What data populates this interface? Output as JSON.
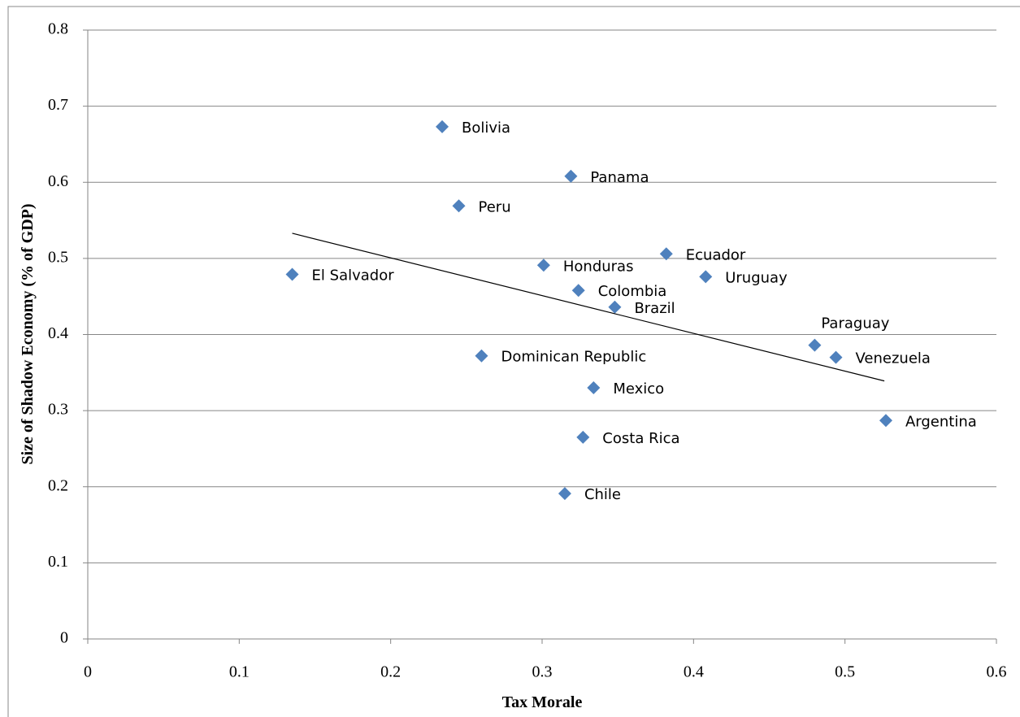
{
  "chart_data": {
    "type": "scatter",
    "x_label": "Tax Morale",
    "y_label": "Size of Shadow Economy (% of GDP)",
    "series": [
      {
        "color": "#4f81bd",
        "labels": [
          "Bolivia",
          "Panama",
          "Peru",
          "El Salvador",
          "Honduras",
          "Ecuador",
          "Uruguay",
          "Colombia",
          "Brazil",
          "Paraguay",
          "Venezuela",
          "Dominican Republic",
          "Mexico",
          "Argentina",
          "Costa Rica",
          "Chile"
        ],
        "x": [
          0.234,
          0.319,
          0.245,
          0.135,
          0.301,
          0.382,
          0.408,
          0.324,
          0.348,
          0.48,
          0.494,
          0.26,
          0.334,
          0.527,
          0.327,
          0.315
        ],
        "y": [
          0.673,
          0.608,
          0.569,
          0.479,
          0.491,
          0.506,
          0.476,
          0.458,
          0.436,
          0.386,
          0.37,
          0.372,
          0.33,
          0.287,
          0.265,
          0.191
        ]
      }
    ],
    "trendline": {
      "color": "#000000",
      "x": [
        0.135,
        0.526
      ],
      "y": [
        0.533,
        0.339
      ]
    },
    "xlim": [
      0,
      0.6
    ],
    "xticks": [
      0,
      0.1,
      0.2,
      0.3,
      0.4,
      0.5,
      0.6
    ],
    "ylim": [
      0,
      0.8
    ],
    "yticks": [
      0,
      0.1,
      0.2,
      0.3,
      0.4,
      0.5,
      0.6,
      0.7,
      0.8
    ],
    "grid": true
  }
}
